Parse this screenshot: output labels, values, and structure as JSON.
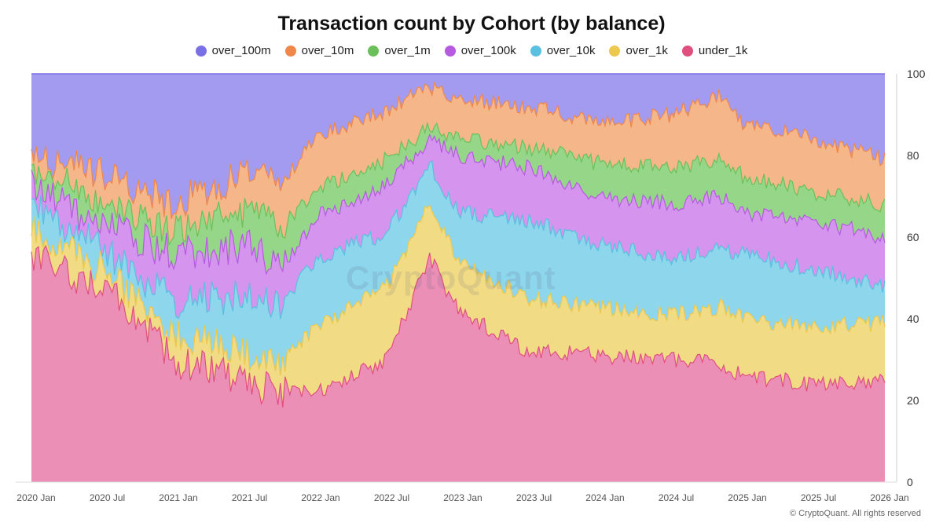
{
  "chart_data": {
    "type": "area",
    "stacked": true,
    "percent": true,
    "title": "Transaction count by Cohort (by balance)",
    "x_ticks": [
      "2020 Jan",
      "2020 Jul",
      "2021 Jan",
      "2021 Jul",
      "2022 Jan",
      "2022 Jul",
      "2023 Jan",
      "2023 Jul",
      "2024 Jan",
      "2024 Jul",
      "2025 Jan",
      "2025 Jul",
      "2026 Jan"
    ],
    "y_ticks": [
      "0",
      "20",
      "40",
      "60",
      "80",
      "100"
    ],
    "ylim": [
      0,
      100
    ],
    "legend_position": "top-center",
    "series_order_top_to_bottom": [
      "over_100m",
      "over_10m",
      "over_1m",
      "over_100k",
      "over_10k",
      "over_1k",
      "under_1k"
    ],
    "series": [
      {
        "name": "over_100m",
        "color": "#7b6fe6",
        "fill": "#a39bf0"
      },
      {
        "name": "over_10m",
        "color": "#f0874a",
        "fill": "#f5b68a"
      },
      {
        "name": "over_1m",
        "color": "#6cc05a",
        "fill": "#95d688"
      },
      {
        "name": "over_100k",
        "color": "#b65ae0",
        "fill": "#d594ee"
      },
      {
        "name": "over_10k",
        "color": "#5bbfe0",
        "fill": "#8dd6ec"
      },
      {
        "name": "over_1k",
        "color": "#ecc84e",
        "fill": "#f1db85"
      },
      {
        "name": "under_1k",
        "color": "#e0507f",
        "fill": "#eb8fb7"
      }
    ],
    "cumulative_boundaries_time": [
      2020.0,
      2020.5,
      2021.0,
      2021.5,
      2021.75,
      2022.0,
      2022.5,
      2022.8,
      2023.0,
      2023.5,
      2024.0,
      2024.5,
      2024.85,
      2025.0,
      2025.5,
      2026.0
    ],
    "boundaries": {
      "under_1k": [
        55,
        48,
        30,
        25,
        22,
        22,
        30,
        55,
        42,
        32,
        31,
        30,
        29,
        26,
        24,
        25
      ],
      "over_1k": [
        62,
        52,
        36,
        32,
        30,
        38,
        48,
        68,
        54,
        45,
        43,
        41,
        43,
        40,
        38,
        39
      ],
      "over_10k": [
        68,
        57,
        44,
        46,
        42,
        55,
        61,
        78,
        66,
        64,
        58,
        55,
        57,
        56,
        52,
        48
      ],
      "over_100k": [
        72,
        63,
        56,
        58,
        52,
        65,
        73,
        84,
        80,
        77,
        70,
        68,
        70,
        66,
        64,
        60
      ],
      "over_1m": [
        76,
        69,
        62,
        66,
        62,
        72,
        79,
        87,
        84,
        82,
        78,
        77,
        79,
        75,
        71,
        68
      ],
      "over_10m": [
        80,
        75,
        68,
        76,
        72,
        85,
        91,
        97,
        94,
        92,
        88,
        90,
        95,
        88,
        84,
        79
      ],
      "over_100m": [
        100,
        100,
        100,
        100,
        100,
        100,
        100,
        100,
        100,
        100,
        100,
        100,
        100,
        100,
        100,
        100
      ]
    }
  },
  "legend": {
    "items": [
      {
        "label": "over_100m",
        "color": "#7b6fe6"
      },
      {
        "label": "over_10m",
        "color": "#f0874a"
      },
      {
        "label": "over_1m",
        "color": "#6cc05a"
      },
      {
        "label": "over_100k",
        "color": "#b65ae0"
      },
      {
        "label": "over_10k",
        "color": "#5bbfe0"
      },
      {
        "label": "over_1k",
        "color": "#ecc84e"
      },
      {
        "label": "under_1k",
        "color": "#e0507f"
      }
    ]
  },
  "watermark": "CryptoQuant",
  "copyright": "© CryptoQuant. All rights reserved"
}
